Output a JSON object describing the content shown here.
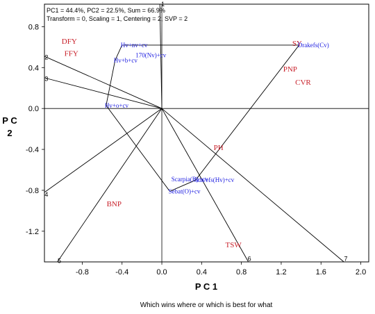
{
  "info": {
    "line1": "PC1 = 44.4%, PC2 = 22.5%, Sum = 66.9%",
    "line2": "Transform = 0, Scaling = 1, Centering = 2, SVP = 2"
  },
  "xlabel": "P C 1",
  "ylabel_line1": "P C",
  "ylabel_line2": "2",
  "caption": "Which wins where or which is best for what",
  "chart_data": {
    "type": "scatter",
    "xlim": [
      -1.18,
      2.08
    ],
    "ylim": [
      -1.5,
      1.02
    ],
    "xticks": [
      "-0.8",
      "-0.4",
      "0.0",
      "0.4",
      "0.8",
      "1.2",
      "1.6",
      "2.0"
    ],
    "yticks": [
      "0.8",
      "0.4",
      "0.0",
      "-0.4",
      "-0.8",
      "-1.2"
    ],
    "traits": [
      {
        "label": "DFY",
        "x": -0.93,
        "y": 0.66
      },
      {
        "label": "FFY",
        "x": -0.91,
        "y": 0.54
      },
      {
        "label": "SY",
        "x": 1.36,
        "y": 0.64
      },
      {
        "label": "PNP",
        "x": 1.29,
        "y": 0.39
      },
      {
        "label": "CVR",
        "x": 1.42,
        "y": 0.26
      },
      {
        "label": "PH",
        "x": 0.57,
        "y": -0.38
      },
      {
        "label": "BNP",
        "x": -0.48,
        "y": -0.93
      },
      {
        "label": "TSW",
        "x": 0.72,
        "y": -1.33
      }
    ],
    "genotypes": [
      {
        "label": "Hv+nv+cv",
        "x": -0.4,
        "y": 0.62,
        "num": ""
      },
      {
        "label": "170(Nv)+cv",
        "x": -0.25,
        "y": 0.52,
        "num": ""
      },
      {
        "label": "Hv+b+cv",
        "x": -0.47,
        "y": 0.47,
        "num": ""
      },
      {
        "label": "Hv+o+cv",
        "x": -0.56,
        "y": 0.03,
        "num": ""
      },
      {
        "label": "Drakefs(Cv)",
        "x": 1.38,
        "y": 0.62,
        "num": ""
      },
      {
        "label": "Scarpia(B)+cv",
        "x": 0.11,
        "y": -0.69,
        "num": ""
      },
      {
        "label": "Sun/efs(Hv)+cv",
        "x": 0.34,
        "y": -0.7,
        "num": ""
      },
      {
        "label": "Sebat(O)+cv",
        "x": 0.08,
        "y": -0.81,
        "num": ""
      }
    ],
    "vertex_numbers": [
      {
        "num": "1",
        "x": 0.01,
        "y": 1.02
      },
      {
        "num": "2",
        "x": -1.16,
        "y": 0.5
      },
      {
        "num": "3",
        "x": -1.16,
        "y": 0.29
      },
      {
        "num": "4",
        "x": -1.16,
        "y": -0.84
      },
      {
        "num": "5",
        "x": -1.03,
        "y": -1.49
      },
      {
        "num": "6",
        "x": 0.88,
        "y": -1.47
      },
      {
        "num": "7",
        "x": 1.85,
        "y": -1.47
      }
    ],
    "polygon": [
      [
        -0.4,
        0.62
      ],
      [
        1.38,
        0.62
      ],
      [
        0.34,
        -0.7
      ],
      [
        0.08,
        -0.81
      ],
      [
        -0.56,
        0.03
      ],
      [
        -0.47,
        0.47
      ]
    ],
    "rays": [
      [
        -0.02,
        1.02
      ],
      [
        -1.18,
        0.51
      ],
      [
        -1.18,
        0.3
      ],
      [
        -1.18,
        -0.82
      ],
      [
        -1.05,
        -1.5
      ],
      [
        0.87,
        -1.5
      ],
      [
        1.83,
        -1.5
      ]
    ]
  }
}
